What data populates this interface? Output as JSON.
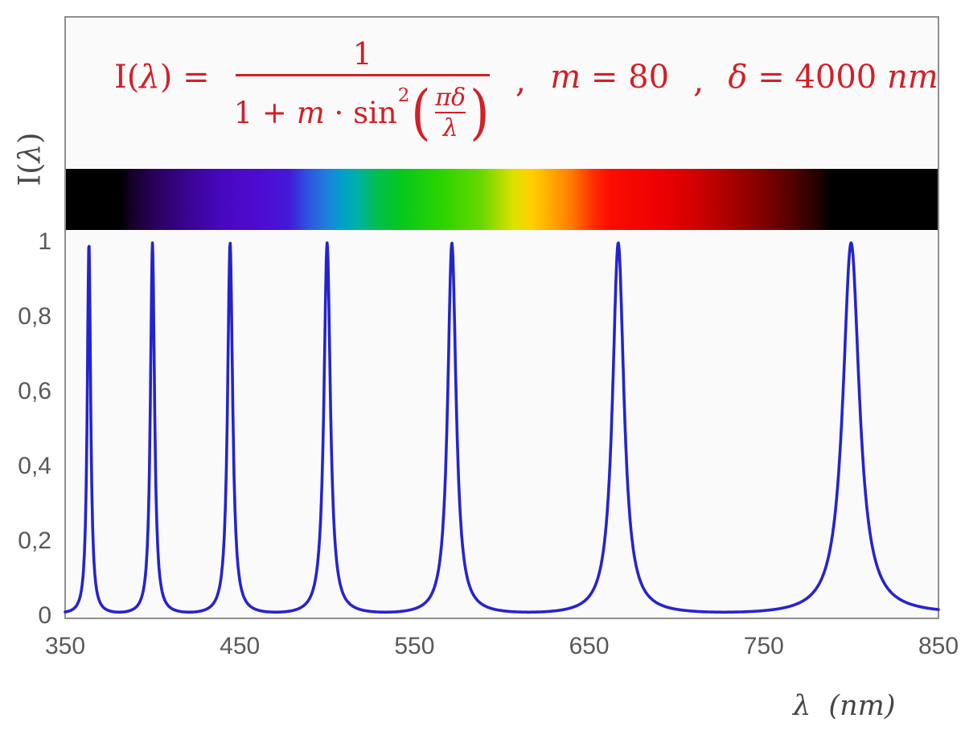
{
  "colors": {
    "formula_red": "#d22027",
    "curve_blue": "#2424cf",
    "tick_gray": "#595959",
    "frame_gray": "#8f8f8f",
    "plot_bg": "#fafafa",
    "page_bg": "#ffffff",
    "axis_title_gray": "#464646"
  },
  "formula": {
    "lhs_pre": "I(",
    "lhs_var": "λ",
    "lhs_post": ") =",
    "numerator": "1",
    "den_one_plus": "1 + ",
    "den_m": "m",
    "den_dot_sin": " · sin",
    "den_sup": "2",
    "paren_open": "(",
    "paren_close": ")",
    "inner_num": "πδ",
    "inner_den": "λ",
    "comma1": ",",
    "param_m_var": "m",
    "param_m_rest": " = 80",
    "comma2": ",",
    "param_d_var": "δ",
    "param_d_rest": " = 4000 ",
    "param_d_unit": "nm"
  },
  "y_axis": {
    "title_pre": "I(",
    "title_var": "λ",
    "title_post": ")",
    "ticks": [
      {
        "label": "1",
        "value": 1
      },
      {
        "label": "0,8",
        "value": 0.8
      },
      {
        "label": "0,6",
        "value": 0.6
      },
      {
        "label": "0,4",
        "value": 0.4
      },
      {
        "label": "0,2",
        "value": 0.2
      },
      {
        "label": "0",
        "value": 0
      }
    ]
  },
  "x_axis": {
    "title": "λ  (nm)",
    "ticks": [
      {
        "label": "350",
        "value": 350
      },
      {
        "label": "450",
        "value": 450
      },
      {
        "label": "550",
        "value": 550
      },
      {
        "label": "650",
        "value": 650
      },
      {
        "label": "750",
        "value": 750
      },
      {
        "label": "850",
        "value": 850
      }
    ]
  },
  "spectrum_bar": {
    "description": "visible-light spectrum strip aligned to wavelength axis, black outside ~380-785 nm",
    "stops": [
      {
        "nm": 350,
        "color": "#000000"
      },
      {
        "nm": 381,
        "color": "#000000"
      },
      {
        "nm": 388,
        "color": "#150028"
      },
      {
        "nm": 400,
        "color": "#280058"
      },
      {
        "nm": 420,
        "color": "#3a0492"
      },
      {
        "nm": 440,
        "color": "#4708c0"
      },
      {
        "nm": 460,
        "color": "#4f0ad0"
      },
      {
        "nm": 478,
        "color": "#4418d8"
      },
      {
        "nm": 488,
        "color": "#2f50e0"
      },
      {
        "nm": 500,
        "color": "#1e80dc"
      },
      {
        "nm": 508,
        "color": "#00a0cc"
      },
      {
        "nm": 518,
        "color": "#00b2a0"
      },
      {
        "nm": 528,
        "color": "#00be50"
      },
      {
        "nm": 542,
        "color": "#06c81c"
      },
      {
        "nm": 565,
        "color": "#2ad400"
      },
      {
        "nm": 588,
        "color": "#66d800"
      },
      {
        "nm": 598,
        "color": "#a8dc00"
      },
      {
        "nm": 607,
        "color": "#e0e000"
      },
      {
        "nm": 617,
        "color": "#ffd000"
      },
      {
        "nm": 627,
        "color": "#ffae00"
      },
      {
        "nm": 640,
        "color": "#ff7a00"
      },
      {
        "nm": 652,
        "color": "#ff3000"
      },
      {
        "nm": 662,
        "color": "#fb0d00"
      },
      {
        "nm": 690,
        "color": "#ee0000"
      },
      {
        "nm": 710,
        "color": "#d40000"
      },
      {
        "nm": 730,
        "color": "#ab0000"
      },
      {
        "nm": 750,
        "color": "#800000"
      },
      {
        "nm": 766,
        "color": "#540000"
      },
      {
        "nm": 780,
        "color": "#280000"
      },
      {
        "nm": 789,
        "color": "#000000"
      },
      {
        "nm": 850,
        "color": "#000000"
      }
    ]
  },
  "chart_data": {
    "type": "line",
    "title": "I(λ) = 1 / (1 + m·sin²(πδ/λ)) ,  m = 80 ,  δ = 4000 nm",
    "params": {
      "m": 80,
      "delta_nm": 4000
    },
    "x": {
      "label": "λ (nm)",
      "min": 350,
      "max": 850,
      "ticks": [
        350,
        450,
        550,
        650,
        750,
        850
      ]
    },
    "y": {
      "label": "I(λ)",
      "min": 0,
      "max": 1,
      "ticks": [
        0,
        0.2,
        0.4,
        0.6,
        0.8,
        1
      ],
      "tick_labels": [
        "0",
        "0,2",
        "0,4",
        "0,6",
        "0,8",
        "1"
      ]
    },
    "grid": false,
    "legend": "none",
    "sample_step_nm": 0.25,
    "peaks_nm": [
      363.64,
      400,
      444.44,
      500,
      571.43,
      666.67,
      800
    ],
    "peak_value": 1,
    "baseline_value": 0.0123,
    "series": [
      {
        "name": "I(λ)",
        "color": "#2424cf",
        "stroke_width": 3.6
      }
    ]
  }
}
